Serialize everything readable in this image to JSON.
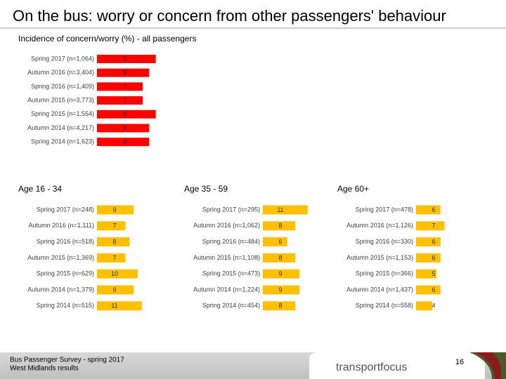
{
  "slide": {
    "title": "On the bus: worry or concern from other passengers' behaviour",
    "footer_lines": [
      "Bus Passenger Survey - spring 2017",
      "West Midlands results"
    ],
    "logo": "transportfocus",
    "page_number": "16"
  },
  "chart_data": [
    {
      "type": "bar",
      "orientation": "horizontal",
      "title": "Incidence of concern/worry (%) - all passengers",
      "color": "#ff0000",
      "categories": [
        "Spring 2017 (n=1,064)",
        "Autumn 2016 (n=3,404)",
        "Spring 2016 (n=1,409)",
        "Autumn 2015 (n=3,773)",
        "Spring 2015 (n=1,554)",
        "Autumn 2014 (n=4,217)",
        "Spring 2014 (n=1,623)"
      ],
      "values": [
        9,
        8,
        7,
        7,
        9,
        8,
        8
      ]
    },
    {
      "type": "bar",
      "orientation": "horizontal",
      "title": "Age 16 - 34",
      "color": "#ffc000",
      "categories": [
        "Spring 2017 (n=248)",
        "Autumn 2016 (n=1,111)",
        "Spring 2016 (n=518)",
        "Autumn 2015 (n=1,369)",
        "Spring 2015 (n=629)",
        "Autumn 2014 (n=1,379)",
        "Spring 2014 (n=515)"
      ],
      "values": [
        9,
        7,
        8,
        7,
        10,
        9,
        11
      ]
    },
    {
      "type": "bar",
      "orientation": "horizontal",
      "title": "Age 35 - 59",
      "color": "#ffc000",
      "categories": [
        "Spring 2017 (n=295)",
        "Autumn 2016 (n=1,062)",
        "Spring 2016 (n=484)",
        "Autumn 2015 (n=1,108)",
        "Spring 2015 (n=473)",
        "Autumn 2014 (n=1,224)",
        "Spring 2014 (n=454)"
      ],
      "values": [
        11,
        8,
        6,
        8,
        9,
        9,
        8
      ]
    },
    {
      "type": "bar",
      "orientation": "horizontal",
      "title": "Age 60+",
      "color": "#ffc000",
      "categories": [
        "Spring 2017 (n=478)",
        "Autumn 2016 (n=1,126)",
        "Spring 2016 (n=330)",
        "Autumn 2015 (n=1,153)",
        "Spring 2015 (n=366)",
        "Autumn 2014 (n=1,437)",
        "Spring 2014 (n=558)"
      ],
      "values": [
        6,
        7,
        6,
        6,
        5,
        6,
        4
      ]
    }
  ]
}
